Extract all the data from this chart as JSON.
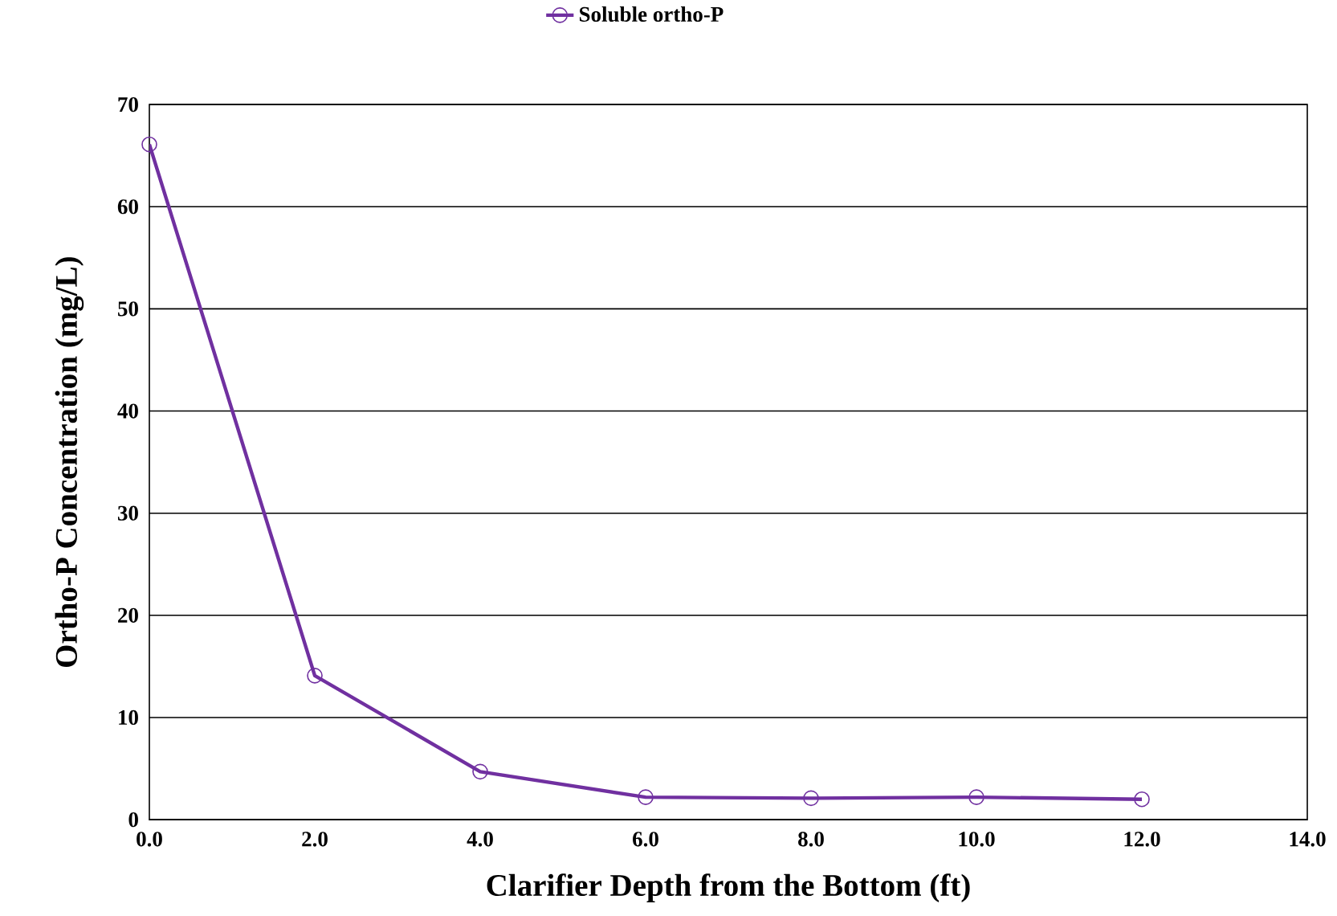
{
  "chart_data": {
    "type": "line",
    "xlabel": "Clarifier Depth from the Bottom (ft)",
    "ylabel": "Ortho-P Concentration (mg/L)",
    "x": [
      0,
      2,
      4,
      6,
      8,
      10,
      12
    ],
    "series": [
      {
        "name": "Soluble ortho-P",
        "color": "#7030a0",
        "values": [
          66.1,
          14.1,
          4.7,
          2.2,
          2.1,
          2.2,
          2.0
        ]
      }
    ],
    "xlim": [
      0,
      14
    ],
    "ylim": [
      0,
      70
    ],
    "xticks": [
      {
        "value": 0,
        "label": "0.0"
      },
      {
        "value": 2,
        "label": "2.0"
      },
      {
        "value": 4,
        "label": "4.0"
      },
      {
        "value": 6,
        "label": "6.0"
      },
      {
        "value": 8,
        "label": "8.0"
      },
      {
        "value": 10,
        "label": "10.0"
      },
      {
        "value": 12,
        "label": "12.0"
      },
      {
        "value": 14,
        "label": "14.0"
      }
    ],
    "yticks": [
      0,
      10,
      20,
      30,
      40,
      50,
      60,
      70
    ],
    "grid": "y",
    "legend": "top",
    "marker": "circle",
    "line_style": "solid"
  }
}
